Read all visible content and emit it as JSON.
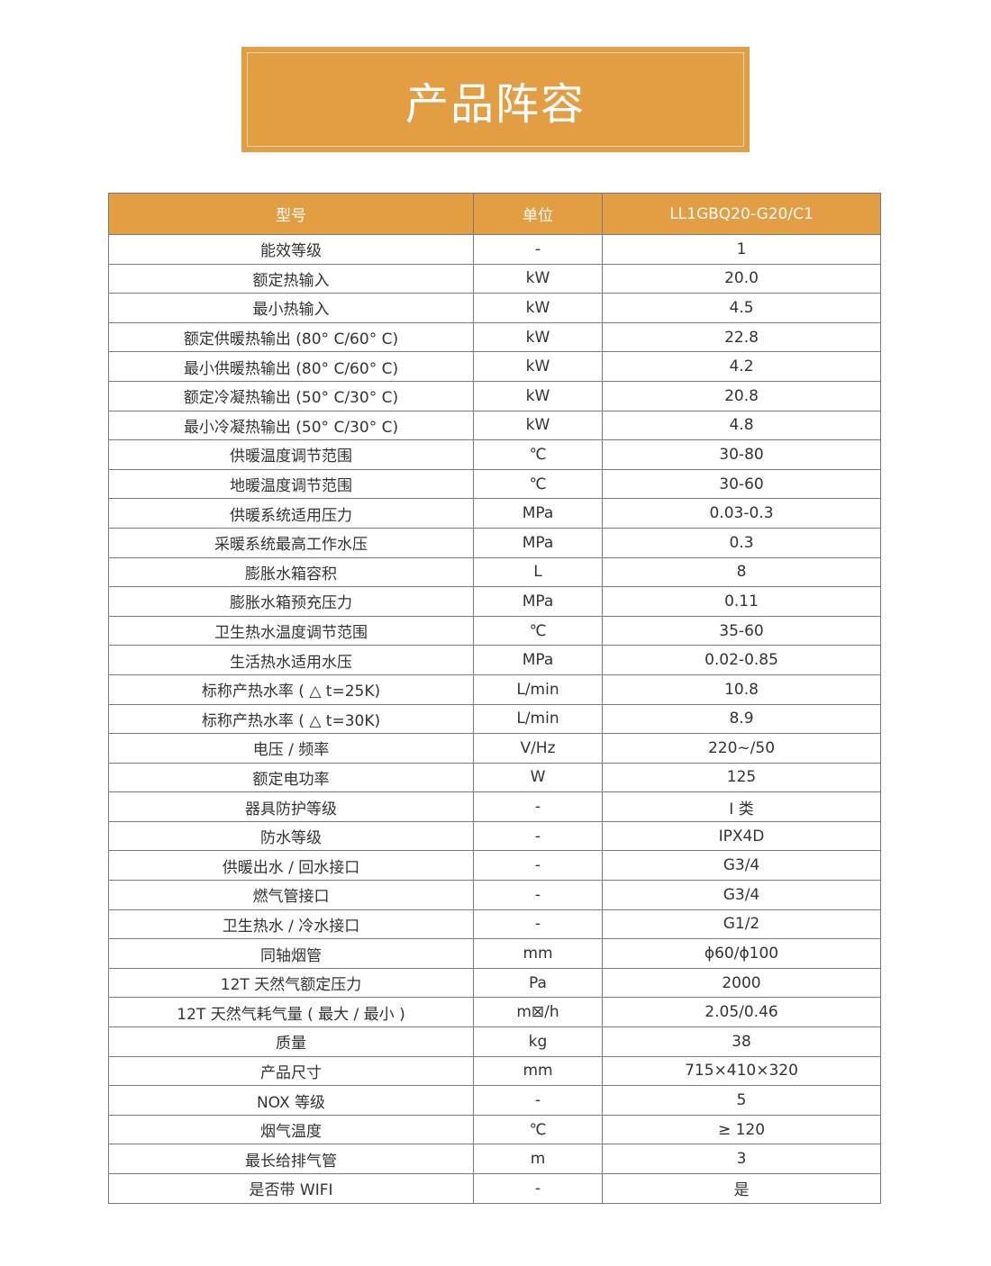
{
  "banner": {
    "title": "产品阵容",
    "color": "#e39e44"
  },
  "table": {
    "headers": [
      "型号",
      "单位",
      "LL1GBQ20-G20/C1"
    ],
    "rows": [
      [
        "能效等级",
        "-",
        "1"
      ],
      [
        "额定热输入",
        "kW",
        "20.0"
      ],
      [
        "最小热输入",
        "kW",
        "4.5"
      ],
      [
        "额定供暖热输出 (80°  C/60°  C)",
        "kW",
        "22.8"
      ],
      [
        "最小供暖热输出 (80°  C/60°  C)",
        "kW",
        "4.2"
      ],
      [
        "额定冷凝热输出 (50°  C/30°  C)",
        "kW",
        "20.8"
      ],
      [
        "最小冷凝热输出 (50°  C/30°  C)",
        "kW",
        "4.8"
      ],
      [
        "供暖温度调节范围",
        "℃",
        "30-80"
      ],
      [
        "地暖温度调节范围",
        "℃",
        "30-60"
      ],
      [
        "供暖系统适用压力",
        "MPa",
        "0.03-0.3"
      ],
      [
        "采暖系统最高工作水压",
        "MPa",
        "0.3"
      ],
      [
        "膨胀水箱容积",
        "L",
        "8"
      ],
      [
        "膨胀水箱预充压力",
        "MPa",
        "0.11"
      ],
      [
        "卫生热水温度调节范围",
        "℃",
        "35-60"
      ],
      [
        "生活热水适用水压",
        "MPa",
        "0.02-0.85"
      ],
      [
        "标称产热水率 ( △ t=25K)",
        "L/min",
        "10.8"
      ],
      [
        "标称产热水率 ( △ t=30K)",
        "L/min",
        "8.9"
      ],
      [
        "电压 / 频率",
        "V/Hz",
        "220~/50"
      ],
      [
        "额定电功率",
        "W",
        "125"
      ],
      [
        "器具防护等级",
        "-",
        "I 类"
      ],
      [
        "防水等级",
        "-",
        "IPX4D"
      ],
      [
        "供暖出水 / 回水接口",
        "-",
        "G3/4"
      ],
      [
        "燃气管接口",
        "-",
        "G3/4"
      ],
      [
        "卫生热水 / 冷水接口",
        "-",
        "G1/2"
      ],
      [
        "同轴烟管",
        "mm",
        "ϕ60/ϕ100"
      ],
      [
        "12T 天然气额定压力",
        "Pa",
        "2000"
      ],
      [
        "12T 天然气耗气量 ( 最大 / 最小 )",
        "m⊠/h",
        "2.05/0.46"
      ],
      [
        "质量",
        "kg",
        "38"
      ],
      [
        "产品尺寸",
        "mm",
        "715×410×320"
      ],
      [
        "NOX 等级",
        "-",
        "5"
      ],
      [
        "烟气温度",
        "℃",
        "≥ 120"
      ],
      [
        "最长给排气管",
        "m",
        "3"
      ],
      [
        "是否带 WIFI",
        "-",
        "是"
      ]
    ]
  }
}
